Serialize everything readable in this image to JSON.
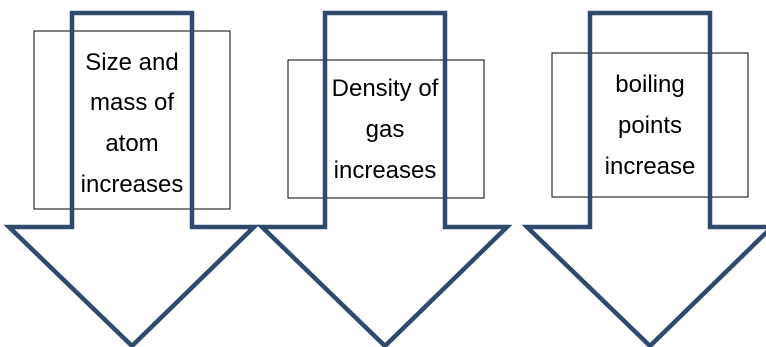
{
  "colors": {
    "arrow_outline": "#2f4a6d",
    "box_outline": "#000000",
    "text": "#000000"
  },
  "arrows": [
    {
      "icon": "down-arrow-icon",
      "lines": [
        "Size and",
        "mass of",
        "atom",
        "increases"
      ]
    },
    {
      "icon": "down-arrow-icon",
      "lines": [
        "Density of",
        "gas",
        "increases"
      ]
    },
    {
      "icon": "down-arrow-icon",
      "lines": [
        "boiling",
        "points",
        "increase"
      ]
    }
  ]
}
